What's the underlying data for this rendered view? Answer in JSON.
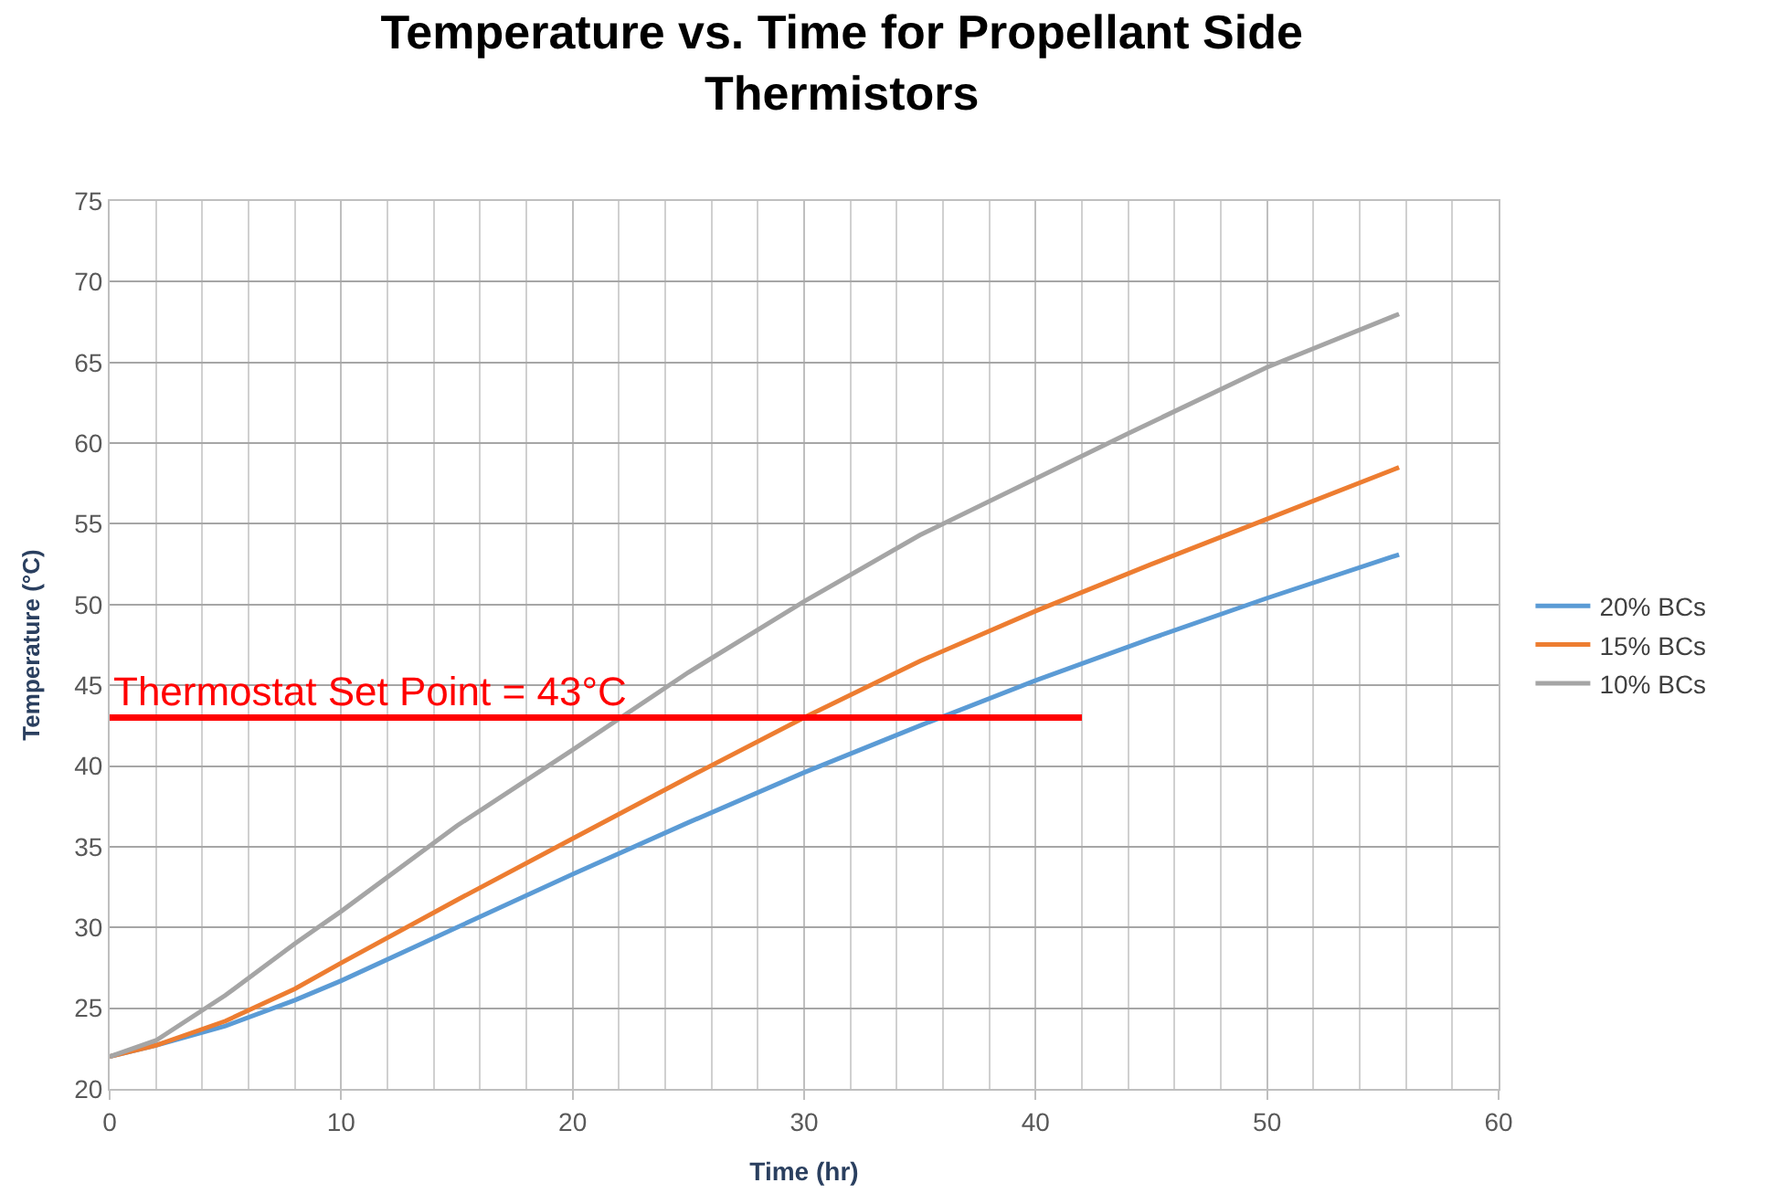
{
  "chart_data": {
    "type": "line",
    "title": "Temperature vs. Time for Propellant Side Thermistors",
    "xlabel": "Time (hr)",
    "ylabel": "Temperature (°C)",
    "xlim": [
      0,
      60
    ],
    "xticks": [
      0,
      10,
      20,
      30,
      40,
      50,
      60
    ],
    "ylim": [
      20,
      75
    ],
    "yticks": [
      20,
      25,
      30,
      35,
      40,
      45,
      50,
      55,
      60,
      65,
      70,
      75
    ],
    "grid": true,
    "legend": "right",
    "marker": "none",
    "line_style": "solid",
    "series": [
      {
        "name": "20% BCs",
        "color": "#5b9bd5",
        "x": [
          0,
          2,
          5,
          8,
          10,
          15,
          20,
          25,
          30,
          35,
          40,
          45,
          50,
          55.7
        ],
        "values": [
          22.0,
          22.7,
          23.9,
          25.5,
          26.7,
          30.0,
          33.3,
          36.5,
          39.6,
          42.5,
          45.3,
          47.9,
          50.4,
          53.1
        ]
      },
      {
        "name": "15% BCs",
        "color": "#ed7d31",
        "x": [
          0,
          2,
          5,
          8,
          10,
          15,
          20,
          25,
          30,
          35,
          40,
          45,
          50,
          55.7
        ],
        "values": [
          22.0,
          22.7,
          24.2,
          26.2,
          27.8,
          31.7,
          35.5,
          39.3,
          43.0,
          46.5,
          49.6,
          52.5,
          55.3,
          58.5
        ]
      },
      {
        "name": "10% BCs",
        "color": "#a5a5a5",
        "x": [
          0,
          2,
          5,
          8,
          10,
          15,
          20,
          25,
          30,
          35,
          40,
          44,
          50,
          55.7
        ],
        "values": [
          22.0,
          23.0,
          25.8,
          29.0,
          31.0,
          36.3,
          41.0,
          45.8,
          50.2,
          54.3,
          57.8,
          60.6,
          64.7,
          68.0
        ]
      },
      {
        "color": "#ff0000",
        "x": [
          0,
          42
        ],
        "values": [
          43,
          43
        ]
      }
    ],
    "annotations": [
      {
        "text": "Thermostat Set Point = 43°C",
        "x": 0,
        "y": 43
      }
    ]
  }
}
